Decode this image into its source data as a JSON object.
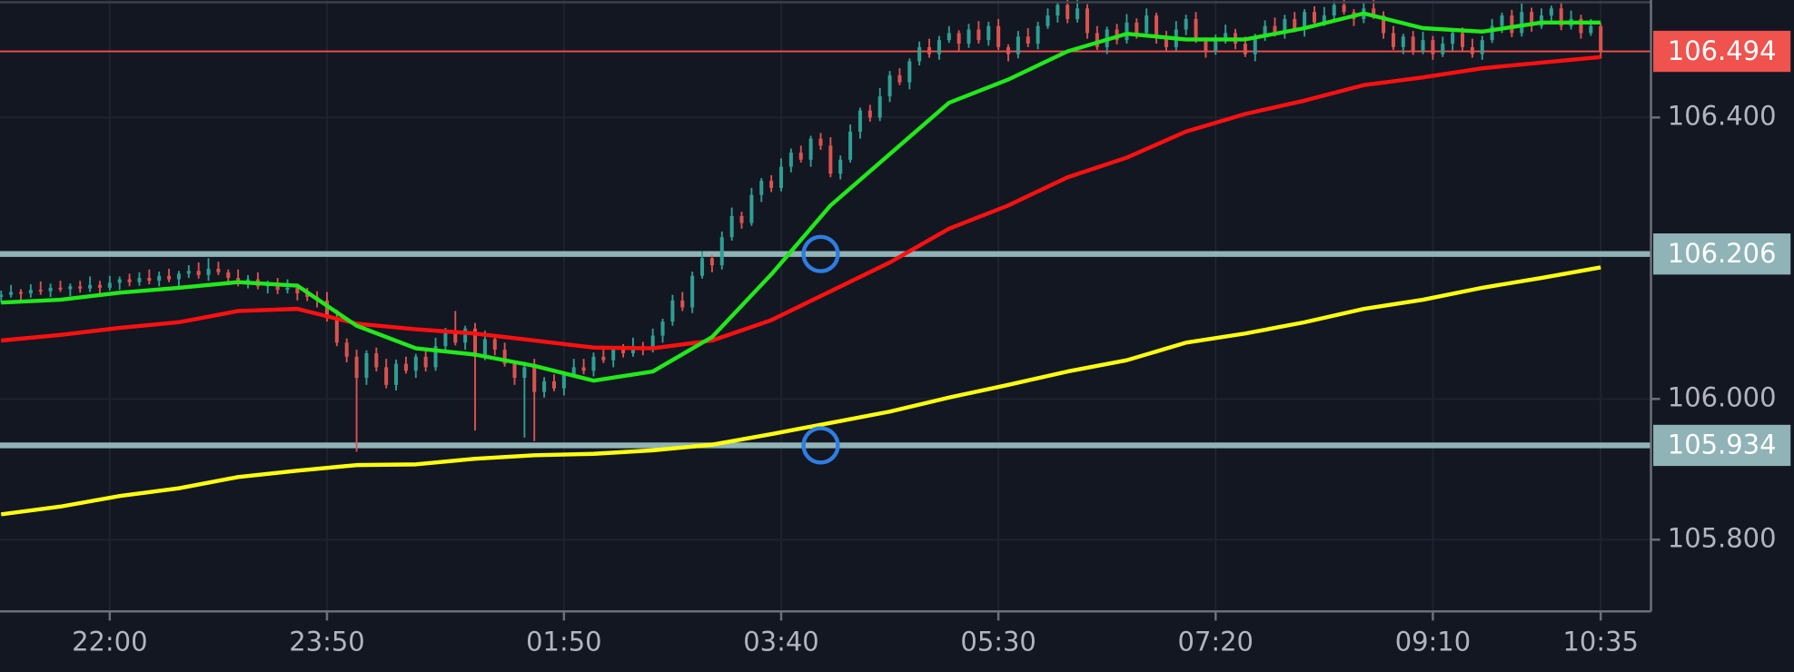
{
  "chart_data": {
    "type": "candlestick",
    "categories": [
      "21:05",
      "21:10",
      "21:15",
      "21:20",
      "21:25",
      "21:30",
      "21:35",
      "21:40",
      "21:45",
      "21:50",
      "21:55",
      "22:00",
      "22:05",
      "22:10",
      "22:15",
      "22:20",
      "22:25",
      "22:30",
      "22:35",
      "22:40",
      "22:45",
      "22:50",
      "22:55",
      "23:00",
      "23:05",
      "23:10",
      "23:15",
      "23:20",
      "23:25",
      "23:30",
      "23:35",
      "23:40",
      "23:45",
      "23:50",
      "23:55",
      "00:00",
      "00:05",
      "00:10",
      "00:15",
      "00:20",
      "00:25",
      "00:30",
      "00:35",
      "00:40",
      "00:45",
      "00:50",
      "00:55",
      "01:00",
      "01:05",
      "01:10",
      "01:15",
      "01:20",
      "01:25",
      "01:30",
      "01:35",
      "01:40",
      "01:45",
      "01:50",
      "01:55",
      "02:00",
      "02:05",
      "02:10",
      "02:15",
      "02:20",
      "02:25",
      "02:30",
      "02:35",
      "02:40",
      "02:45",
      "02:50",
      "02:55",
      "03:00",
      "03:05",
      "03:10",
      "03:15",
      "03:20",
      "03:25",
      "03:30",
      "03:35",
      "03:40",
      "03:45",
      "03:50",
      "03:55",
      "04:00",
      "04:05",
      "04:10",
      "04:15",
      "04:20",
      "04:25",
      "04:30",
      "04:35",
      "04:40",
      "04:45",
      "04:50",
      "04:55",
      "05:00",
      "05:05",
      "05:10",
      "05:15",
      "05:20",
      "05:25",
      "05:30",
      "05:35",
      "05:40",
      "05:45",
      "05:50",
      "05:55",
      "06:00",
      "06:05",
      "06:10",
      "06:15",
      "06:20",
      "06:25",
      "06:30",
      "06:35",
      "06:40",
      "06:45",
      "06:50",
      "06:55",
      "07:00",
      "07:05",
      "07:10",
      "07:15",
      "07:20",
      "07:25",
      "07:30",
      "07:35",
      "07:40",
      "07:45",
      "07:50",
      "07:55",
      "08:00",
      "08:05",
      "08:10",
      "08:15",
      "08:20",
      "08:25",
      "08:30",
      "08:35",
      "08:40",
      "08:45",
      "08:50",
      "08:55",
      "09:00",
      "09:05",
      "09:10",
      "09:15",
      "09:20",
      "09:25",
      "09:30",
      "09:35",
      "09:40",
      "09:45",
      "09:50",
      "09:55",
      "10:00",
      "10:05",
      "10:10",
      "10:15",
      "10:20",
      "10:25",
      "10:30",
      "10:35"
    ],
    "open": [
      106.145,
      106.148,
      106.152,
      106.15,
      106.155,
      106.153,
      106.158,
      106.156,
      106.16,
      106.157,
      106.162,
      106.158,
      106.165,
      106.17,
      106.166,
      106.172,
      106.168,
      106.175,
      106.17,
      106.178,
      106.182,
      106.176,
      106.185,
      106.18,
      106.172,
      106.165,
      106.17,
      106.16,
      106.164,
      106.155,
      106.158,
      106.15,
      106.145,
      106.14,
      106.115,
      106.08,
      106.06,
      106.03,
      106.065,
      106.045,
      106.02,
      106.05,
      106.04,
      106.06,
      106.045,
      106.075,
      106.095,
      106.08,
      106.1,
      106.06,
      106.085,
      106.07,
      106.05,
      106.03,
      106.045,
      106.01,
      106.025,
      106.015,
      106.035,
      106.045,
      106.04,
      106.06,
      106.055,
      106.07,
      106.065,
      106.075,
      106.07,
      106.09,
      106.11,
      106.14,
      106.13,
      106.175,
      106.2,
      106.19,
      106.23,
      106.26,
      106.25,
      106.29,
      106.31,
      106.3,
      106.33,
      106.35,
      106.34,
      106.37,
      106.36,
      106.32,
      106.34,
      106.38,
      106.41,
      106.4,
      106.43,
      106.46,
      106.45,
      106.48,
      106.5,
      106.49,
      106.51,
      106.52,
      106.505,
      106.525,
      106.51,
      106.53,
      106.5,
      106.49,
      106.515,
      106.505,
      106.53,
      106.545,
      106.56,
      106.54,
      106.555,
      106.52,
      106.5,
      106.525,
      106.51,
      106.535,
      106.52,
      106.545,
      106.515,
      106.5,
      106.525,
      106.54,
      106.51,
      106.495,
      106.51,
      106.52,
      106.505,
      106.49,
      106.515,
      106.53,
      106.52,
      106.54,
      106.525,
      106.55,
      106.535,
      106.545,
      106.56,
      106.55,
      106.54,
      106.555,
      106.545,
      106.52,
      106.5,
      106.515,
      106.495,
      106.51,
      106.49,
      106.505,
      106.52,
      106.5,
      106.49,
      106.51,
      106.53,
      106.545,
      106.52,
      106.55,
      106.53,
      106.545,
      106.555,
      106.53,
      106.54,
      106.52,
      106.53
    ],
    "high": [
      106.154,
      106.162,
      106.156,
      106.163,
      106.167,
      106.164,
      106.168,
      106.164,
      106.168,
      106.174,
      106.168,
      106.175,
      106.174,
      106.178,
      106.18,
      106.184,
      106.181,
      106.185,
      106.182,
      106.19,
      106.194,
      106.2,
      106.195,
      106.184,
      106.184,
      106.176,
      106.18,
      106.168,
      106.172,
      106.17,
      106.164,
      106.158,
      106.153,
      106.152,
      106.127,
      106.086,
      106.07,
      106.069,
      106.073,
      106.057,
      106.056,
      106.06,
      106.064,
      106.068,
      106.087,
      106.101,
      106.125,
      106.104,
      106.108,
      106.097,
      106.091,
      106.08,
      106.054,
      106.053,
      106.057,
      106.031,
      106.035,
      106.039,
      106.057,
      106.057,
      106.066,
      106.07,
      106.074,
      106.078,
      106.087,
      106.081,
      106.1,
      106.114,
      106.148,
      106.152,
      106.181,
      106.21,
      106.204,
      106.238,
      106.272,
      106.266,
      106.3,
      106.314,
      106.318,
      106.342,
      106.356,
      106.36,
      106.374,
      106.378,
      106.372,
      106.346,
      106.39,
      106.414,
      106.418,
      106.442,
      106.466,
      106.47,
      106.484,
      106.508,
      106.512,
      106.516,
      106.53,
      106.524,
      106.533,
      106.537,
      106.536,
      106.54,
      106.504,
      106.523,
      106.527,
      106.536,
      106.555,
      106.564,
      106.568,
      106.567,
      106.561,
      106.53,
      106.529,
      106.533,
      106.547,
      106.541,
      106.555,
      106.549,
      106.523,
      106.537,
      106.546,
      106.55,
      106.514,
      106.518,
      106.532,
      106.526,
      106.515,
      106.519,
      106.538,
      106.542,
      106.546,
      106.55,
      106.554,
      106.558,
      106.557,
      106.566,
      106.57,
      106.554,
      106.563,
      106.567,
      106.551,
      106.53,
      106.519,
      106.523,
      106.522,
      106.516,
      106.515,
      106.524,
      106.528,
      106.512,
      106.516,
      106.54,
      106.549,
      106.553,
      106.562,
      106.556,
      106.555,
      106.559,
      106.563,
      106.552,
      106.546,
      106.54,
      106.534
    ],
    "low": [
      106.137,
      106.144,
      106.14,
      106.144,
      106.148,
      106.145,
      106.152,
      106.146,
      106.151,
      106.152,
      106.15,
      106.154,
      106.155,
      106.16,
      106.161,
      106.163,
      106.16,
      106.166,
      106.16,
      106.172,
      106.171,
      106.168,
      106.176,
      106.162,
      106.16,
      106.157,
      106.156,
      106.15,
      106.149,
      106.15,
      106.14,
      106.139,
      106.13,
      106.11,
      106.075,
      106.052,
      105.925,
      106.02,
      106.039,
      106.015,
      106.012,
      106.036,
      106.03,
      106.039,
      106.04,
      106.067,
      106.076,
      106.07,
      105.955,
      106.055,
      106.062,
      106.046,
      106.02,
      105.945,
      105.94,
      106.002,
      106.011,
      106.005,
      106.03,
      106.035,
      106.032,
      106.051,
      106.045,
      106.059,
      106.06,
      106.062,
      106.066,
      106.08,
      106.104,
      106.125,
      106.122,
      106.171,
      106.18,
      106.184,
      106.225,
      106.242,
      106.246,
      106.28,
      106.294,
      106.295,
      106.322,
      106.336,
      106.33,
      106.354,
      106.315,
      106.312,
      106.336,
      106.37,
      106.394,
      106.395,
      106.422,
      106.446,
      106.44,
      106.474,
      106.485,
      106.482,
      106.506,
      106.495,
      106.499,
      106.505,
      106.502,
      106.496,
      106.48,
      106.484,
      106.5,
      106.497,
      106.526,
      106.535,
      106.534,
      106.535,
      106.512,
      106.496,
      106.49,
      106.504,
      106.505,
      106.512,
      106.516,
      106.505,
      106.494,
      106.495,
      106.517,
      106.506,
      106.485,
      106.489,
      106.505,
      106.497,
      106.486,
      106.48,
      106.509,
      106.515,
      106.512,
      106.521,
      106.515,
      106.529,
      106.53,
      106.537,
      106.546,
      106.53,
      106.534,
      106.54,
      106.512,
      106.496,
      106.49,
      106.489,
      106.49,
      106.482,
      106.486,
      106.495,
      106.494,
      106.485,
      106.482,
      106.506,
      106.52,
      106.514,
      106.515,
      106.522,
      106.526,
      106.535,
      106.524,
      106.525,
      106.512,
      106.516,
      106.484
    ],
    "close": [
      106.148,
      106.152,
      106.15,
      106.155,
      106.153,
      106.158,
      106.156,
      106.16,
      106.157,
      106.162,
      106.158,
      106.165,
      106.17,
      106.166,
      106.172,
      106.168,
      106.175,
      106.17,
      106.178,
      106.182,
      106.176,
      106.185,
      106.18,
      106.172,
      106.165,
      106.17,
      106.16,
      106.164,
      106.155,
      106.158,
      106.15,
      106.145,
      106.14,
      106.115,
      106.08,
      106.06,
      106.03,
      106.065,
      106.045,
      106.02,
      106.05,
      106.04,
      106.06,
      106.045,
      106.075,
      106.095,
      106.08,
      106.1,
      106.06,
      106.085,
      106.07,
      106.05,
      106.03,
      106.045,
      106.01,
      106.025,
      106.015,
      106.035,
      106.045,
      106.04,
      106.06,
      106.055,
      106.07,
      106.065,
      106.075,
      106.07,
      106.09,
      106.11,
      106.14,
      106.13,
      106.175,
      106.2,
      106.19,
      106.23,
      106.26,
      106.25,
      106.29,
      106.31,
      106.3,
      106.33,
      106.35,
      106.34,
      106.37,
      106.36,
      106.32,
      106.34,
      106.38,
      106.41,
      106.4,
      106.43,
      106.46,
      106.45,
      106.48,
      106.5,
      106.49,
      106.51,
      106.52,
      106.505,
      106.525,
      106.51,
      106.53,
      106.5,
      106.49,
      106.515,
      106.505,
      106.53,
      106.545,
      106.56,
      106.54,
      106.555,
      106.52,
      106.5,
      106.525,
      106.51,
      106.535,
      106.52,
      106.545,
      106.515,
      106.5,
      106.525,
      106.54,
      106.51,
      106.495,
      106.51,
      106.52,
      106.505,
      106.49,
      106.515,
      106.53,
      106.52,
      106.54,
      106.525,
      106.55,
      106.535,
      106.545,
      106.56,
      106.55,
      106.54,
      106.555,
      106.545,
      106.52,
      106.5,
      106.515,
      106.495,
      106.51,
      106.49,
      106.505,
      106.52,
      106.5,
      106.49,
      106.51,
      106.53,
      106.545,
      106.52,
      106.55,
      106.53,
      106.545,
      106.555,
      106.53,
      106.54,
      106.52,
      106.53,
      106.494
    ],
    "up_color": "#2f9e92",
    "down_color": "#d9534f",
    "lines": [
      {
        "color": "#ff1010",
        "x": [
          "21:05",
          "21:35",
          "22:05",
          "22:35",
          "23:05",
          "23:35",
          "00:05",
          "00:35",
          "01:05",
          "01:35",
          "02:05",
          "02:35",
          "03:05",
          "03:35",
          "04:05",
          "04:35",
          "05:05",
          "05:35",
          "06:05",
          "06:35",
          "07:05",
          "07:35",
          "08:05",
          "08:35",
          "09:05",
          "09:35",
          "10:05",
          "10:35"
        ],
        "values": [
          106.083,
          106.091,
          106.101,
          106.109,
          106.125,
          106.128,
          106.107,
          106.099,
          106.093,
          106.083,
          106.073,
          106.072,
          106.083,
          106.112,
          106.153,
          106.194,
          106.242,
          106.275,
          106.315,
          106.343,
          106.38,
          106.405,
          106.424,
          106.446,
          106.457,
          106.47,
          106.478,
          106.486
        ]
      },
      {
        "color": "#22e81c",
        "x": [
          "21:05",
          "21:35",
          "22:05",
          "22:35",
          "23:05",
          "23:35",
          "00:05",
          "00:35",
          "01:05",
          "01:35",
          "02:05",
          "02:35",
          "03:05",
          "03:35",
          "04:05",
          "04:35",
          "05:05",
          "05:35",
          "06:05",
          "06:35",
          "07:05",
          "07:35",
          "08:05",
          "08:35",
          "09:05",
          "09:35",
          "10:05",
          "10:35"
        ],
        "values": [
          106.137,
          106.141,
          106.151,
          106.158,
          106.166,
          106.161,
          106.104,
          106.072,
          106.063,
          106.047,
          106.026,
          106.039,
          106.088,
          106.177,
          106.275,
          106.348,
          106.421,
          106.454,
          106.494,
          106.519,
          106.511,
          106.511,
          106.527,
          106.548,
          106.527,
          106.522,
          106.535,
          106.535
        ]
      },
      {
        "color": "#ffff10",
        "x": [
          "21:05",
          "21:35",
          "22:05",
          "22:35",
          "23:05",
          "23:35",
          "00:05",
          "00:35",
          "01:05",
          "01:35",
          "02:05",
          "02:35",
          "03:05",
          "03:35",
          "04:05",
          "04:35",
          "05:05",
          "05:35",
          "06:05",
          "06:35",
          "07:05",
          "07:35",
          "08:05",
          "08:35",
          "09:05",
          "09:35",
          "10:05",
          "10:35"
        ],
        "values": [
          105.836,
          105.847,
          105.862,
          105.873,
          105.889,
          105.898,
          105.906,
          105.907,
          105.915,
          105.92,
          105.922,
          105.927,
          105.935,
          105.95,
          105.966,
          105.982,
          106.002,
          106.02,
          106.039,
          106.055,
          106.08,
          106.093,
          106.109,
          106.128,
          106.141,
          106.158,
          106.172,
          106.187
        ]
      }
    ],
    "levels": {
      "values": [
        106.206,
        105.934
      ],
      "color": "#8fb3b6"
    },
    "price_line": {
      "value": 106.494,
      "color": "#f0524e"
    },
    "markers": {
      "x": [
        "04:00",
        "04:00"
      ],
      "values": [
        106.206,
        105.934
      ],
      "color": "#2f7de1"
    },
    "ylim": [
      105.698,
      106.567
    ],
    "yticks": [
      {
        "value": 105.8,
        "label": "105.800"
      },
      {
        "value": 106.0,
        "label": "106.000"
      },
      {
        "value": 106.4,
        "label": "106.400"
      }
    ],
    "xticks": [
      "22:00",
      "23:50",
      "01:50",
      "03:40",
      "05:30",
      "07:20",
      "09:10",
      "10:35"
    ],
    "grid": true
  }
}
